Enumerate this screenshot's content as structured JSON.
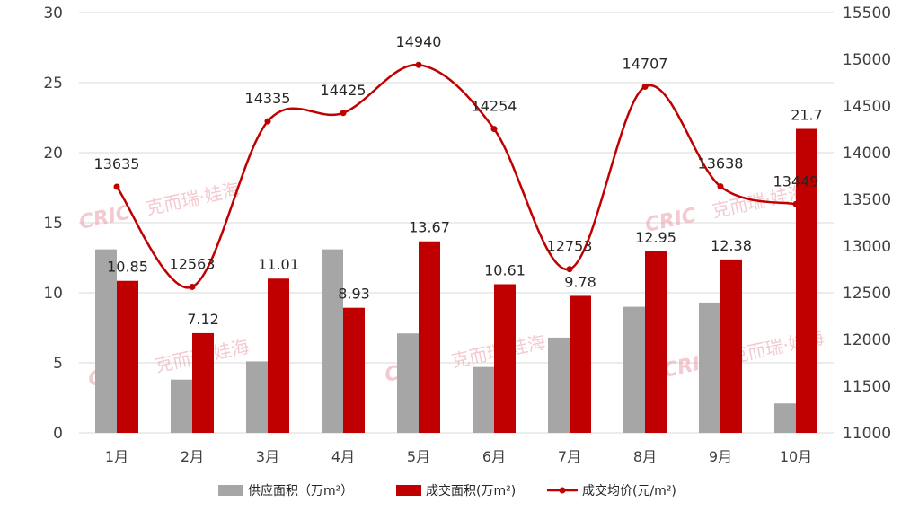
{
  "chart_data": {
    "type": "bar",
    "categories": [
      "1月",
      "2月",
      "3月",
      "4月",
      "5月",
      "6月",
      "7月",
      "8月",
      "9月",
      "10月"
    ],
    "series": [
      {
        "name": "供应面积（万m²）",
        "type": "bar",
        "axis": "left",
        "color": "#a6a6a6",
        "values": [
          13.1,
          3.8,
          5.1,
          13.1,
          7.1,
          4.7,
          6.8,
          9.0,
          9.3,
          2.1
        ],
        "labels": false
      },
      {
        "name": "成交面积(万m²)",
        "type": "bar",
        "axis": "left",
        "color": "#c00000",
        "values": [
          10.85,
          7.12,
          11.01,
          8.93,
          13.67,
          10.61,
          9.78,
          12.95,
          12.38,
          21.7
        ],
        "labels": true
      },
      {
        "name": "成交均价(元/m²)",
        "type": "line",
        "axis": "right",
        "color": "#c00000",
        "smooth": true,
        "values": [
          13635,
          12563,
          14335,
          14425,
          14940,
          14254,
          12753,
          14707,
          13638,
          13449
        ],
        "labels": true
      }
    ],
    "y_left": {
      "range": [
        0,
        30
      ],
      "ticks": [
        0,
        5,
        10,
        15,
        20,
        25,
        30
      ]
    },
    "y_right": {
      "range": [
        11000,
        15500
      ],
      "ticks": [
        11000,
        11500,
        12000,
        12500,
        13000,
        13500,
        14000,
        14500,
        15000,
        15500
      ]
    },
    "grid": true,
    "legend": "bottom"
  },
  "watermark": {
    "logo": "CRIC",
    "text": "克而瑞·娃海"
  }
}
